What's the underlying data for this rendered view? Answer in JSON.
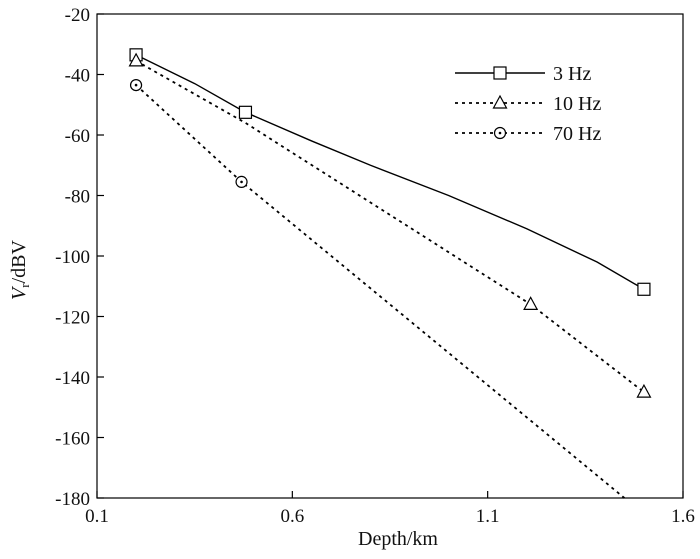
{
  "chart_data": {
    "type": "line",
    "title": "",
    "xlabel": "Depth/km",
    "ylabel_main": "V",
    "ylabel_sub": "r",
    "ylabel_unit": "/dBV",
    "xlim": [
      0.1,
      1.6
    ],
    "ylim": [
      -180,
      -20
    ],
    "xticks": [
      0.1,
      0.6,
      1.1,
      1.6
    ],
    "yticks": [
      -20,
      -40,
      -60,
      -80,
      -100,
      -120,
      -140,
      -160,
      -180
    ],
    "grid": false,
    "legend_position": "top-right",
    "series": [
      {
        "name": "3 Hz",
        "style": "solid",
        "marker": "square",
        "line_x": [
          0.2,
          0.35,
          0.48,
          0.65,
          0.8,
          1.0,
          1.2,
          1.38,
          1.5
        ],
        "line_y": [
          -33.5,
          -43,
          -52.5,
          -62,
          -70,
          -80,
          -91,
          -102,
          -111
        ],
        "markers_x": [
          0.2,
          0.48,
          1.5
        ],
        "markers_y": [
          -33.5,
          -52.5,
          -111
        ]
      },
      {
        "name": "10 Hz",
        "style": "dashed",
        "marker": "triangle",
        "line_x": [
          0.2,
          0.48,
          1.21,
          1.5
        ],
        "line_y": [
          -35.5,
          -56,
          -116,
          -145
        ],
        "markers_x": [
          0.2,
          1.21,
          1.5
        ],
        "markers_y": [
          -35.5,
          -116,
          -145
        ]
      },
      {
        "name": "70 Hz",
        "style": "dashed",
        "marker": "circle",
        "line_x": [
          0.2,
          0.47,
          1.45
        ],
        "line_y": [
          -43.5,
          -75.5,
          -180
        ],
        "markers_x": [
          0.2,
          0.47
        ],
        "markers_y": [
          -43.5,
          -75.5
        ]
      }
    ]
  }
}
